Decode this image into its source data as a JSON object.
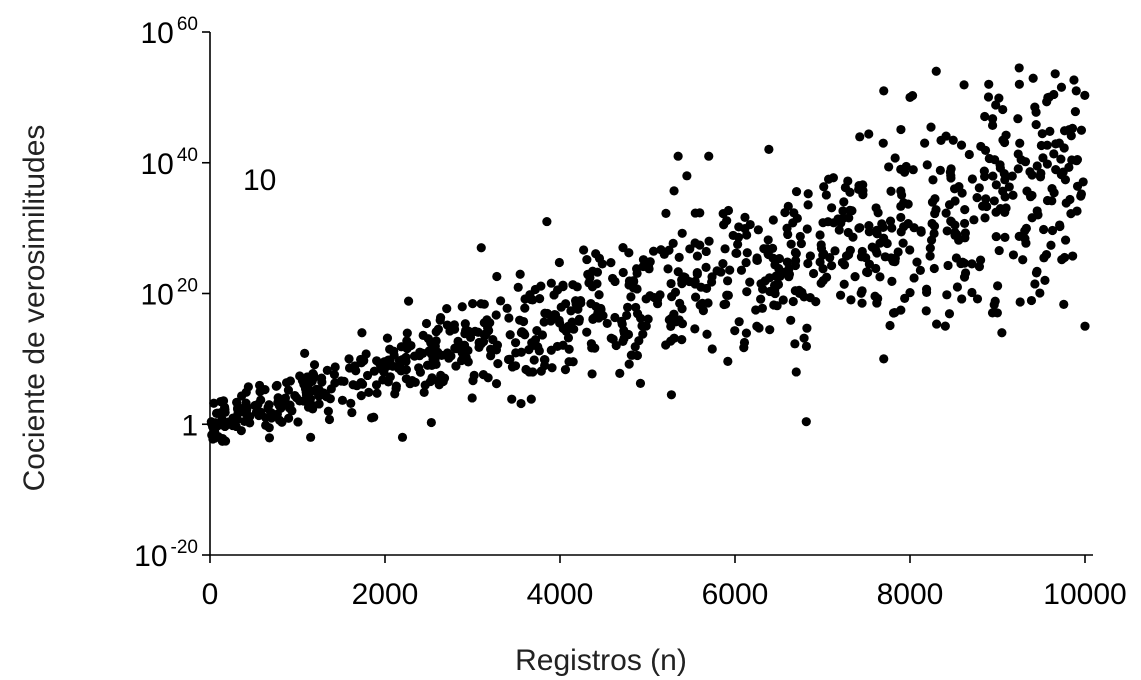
{
  "chart_data": {
    "type": "scatter",
    "title": "",
    "xlabel": "Registros (n)",
    "ylabel": "Cociente de verosimilitudes",
    "annotation": "10",
    "x_scale": "linear",
    "y_scale": "log",
    "xlim": [
      0,
      10000
    ],
    "ylim_log10": [
      -20,
      60
    ],
    "grid": false,
    "legend": "none",
    "marker_color": "#000000",
    "x_ticks": [
      {
        "value": 0,
        "label": "0"
      },
      {
        "value": 2000,
        "label": "2000"
      },
      {
        "value": 4000,
        "label": "4000"
      },
      {
        "value": 6000,
        "label": "6000"
      },
      {
        "value": 8000,
        "label": "8000"
      },
      {
        "value": 10000,
        "label": "10000"
      }
    ],
    "y_ticks": [
      {
        "log10": 60,
        "base": "10",
        "exp": "60"
      },
      {
        "log10": 40,
        "base": "10",
        "exp": "40"
      },
      {
        "log10": 20,
        "base": "10",
        "exp": "20"
      },
      {
        "log10": 0,
        "base": "1",
        "exp": ""
      },
      {
        "log10": -20,
        "base": "10",
        "exp": "-20"
      }
    ],
    "point_count": 1000,
    "trend_log10": {
      "slope_per_n": 0.0039,
      "intercept": 0,
      "spread_grows_with_n": true
    },
    "notable_points": [
      {
        "x": 5350,
        "log10_y": 41
      },
      {
        "x": 5450,
        "log10_y": 38
      },
      {
        "x": 5700,
        "log10_y": 41
      },
      {
        "x": 7700,
        "log10_y": 51
      },
      {
        "x": 8000,
        "log10_y": 50
      },
      {
        "x": 8300,
        "log10_y": 54
      },
      {
        "x": 8900,
        "log10_y": 52
      },
      {
        "x": 9250,
        "log10_y": 52
      },
      {
        "x": 9900,
        "log10_y": 51
      },
      {
        "x": 100,
        "log10_y": 0
      },
      {
        "x": 1150,
        "log10_y": -2
      },
      {
        "x": 2200,
        "log10_y": -2
      },
      {
        "x": 3100,
        "log10_y": 27
      },
      {
        "x": 3850,
        "log10_y": 31
      },
      {
        "x": 6700,
        "log10_y": 8
      },
      {
        "x": 7700,
        "log10_y": 10
      },
      {
        "x": 9050,
        "log10_y": 14
      },
      {
        "x": 10000,
        "log10_y": 15
      }
    ]
  }
}
